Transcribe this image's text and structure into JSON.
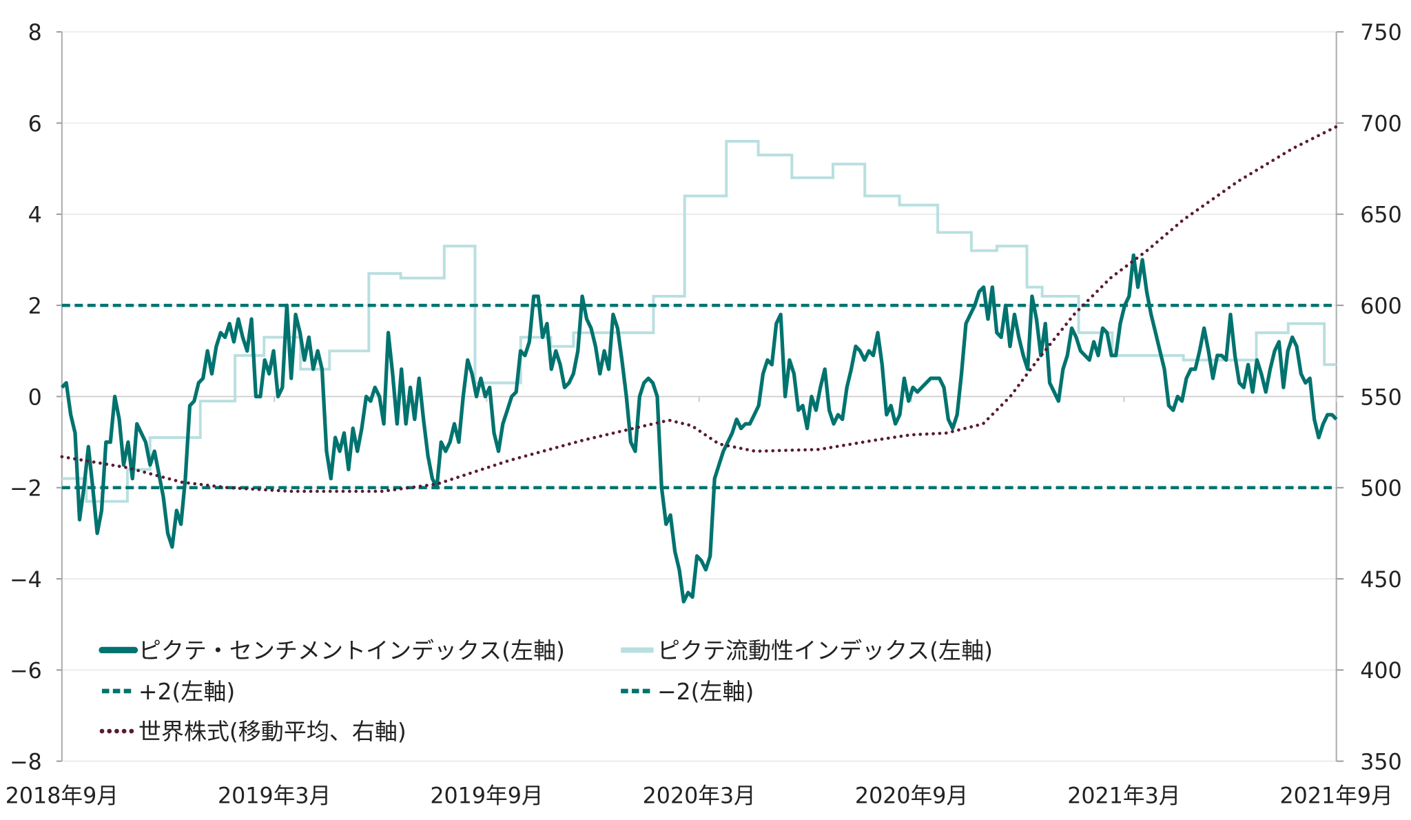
{
  "chart_data": {
    "type": "line",
    "title": "",
    "x_unit": "months since 2018年9月",
    "xlim": [
      0,
      36
    ],
    "x_ticks": [
      {
        "at": 0,
        "label": "2018年9月"
      },
      {
        "at": 6,
        "label": "2019年3月"
      },
      {
        "at": 12,
        "label": "2019年9月"
      },
      {
        "at": 18,
        "label": "2020年3月"
      },
      {
        "at": 24,
        "label": "2020年9月"
      },
      {
        "at": 30,
        "label": "2021年3月"
      },
      {
        "at": 36,
        "label": "2021年9月"
      }
    ],
    "y_left": {
      "lim": [
        -8,
        8
      ],
      "ticks": [
        8,
        6,
        4,
        2,
        0,
        -2,
        -4,
        -6,
        -8
      ],
      "labels": [
        "8",
        "6",
        "4",
        "2",
        "0",
        "−2",
        "−4",
        "−6",
        "−8"
      ]
    },
    "y_right": {
      "lim": [
        350,
        750
      ],
      "ticks": [
        750,
        700,
        650,
        600,
        550,
        500,
        450,
        400,
        350
      ],
      "labels": [
        "750",
        "700",
        "650",
        "600",
        "550",
        "500",
        "450",
        "400",
        "350"
      ]
    },
    "grid": true,
    "legend_placement": "bottom-left",
    "series": [
      {
        "name": "ピクテ・センチメントインデックス(左軸)",
        "axis": "left",
        "style": "solid-thick",
        "color": "#00736f",
        "x_range": [
          0,
          36
        ],
        "values": [
          0.2,
          0.3,
          -0.4,
          -0.8,
          -2.7,
          -2.0,
          -1.1,
          -2.0,
          -3.0,
          -2.5,
          -1.0,
          -1.0,
          0.0,
          -0.5,
          -1.5,
          -1.0,
          -1.8,
          -0.6,
          -0.8,
          -1.0,
          -1.5,
          -1.2,
          -1.7,
          -2.2,
          -3.0,
          -3.3,
          -2.5,
          -2.8,
          -1.8,
          -0.2,
          -0.1,
          0.3,
          0.4,
          1.0,
          0.5,
          1.1,
          1.4,
          1.3,
          1.6,
          1.2,
          1.7,
          1.3,
          1.0,
          1.7,
          0.0,
          0.0,
          0.8,
          0.5,
          1.0,
          0.0,
          0.2,
          2.0,
          0.4,
          1.8,
          1.4,
          0.8,
          1.3,
          0.6,
          1.0,
          0.6,
          -1.2,
          -1.8,
          -0.9,
          -1.2,
          -0.8,
          -1.6,
          -0.7,
          -1.2,
          -0.7,
          0.0,
          -0.1,
          0.2,
          0.0,
          -0.6,
          1.4,
          0.5,
          -0.6,
          0.6,
          -0.6,
          0.2,
          -0.5,
          0.4,
          -0.5,
          -1.3,
          -1.8,
          -2.0,
          -1.0,
          -1.2,
          -1.0,
          -0.6,
          -1.0,
          0.0,
          0.8,
          0.5,
          0.0,
          0.4,
          0.0,
          0.2,
          -0.8,
          -1.2,
          -0.6,
          -0.3,
          0.0,
          0.1,
          1.0,
          0.9,
          1.2,
          2.2,
          2.2,
          1.3,
          1.6,
          0.6,
          1.0,
          0.7,
          0.2,
          0.3,
          0.5,
          1.0,
          2.2,
          1.7,
          1.5,
          1.1,
          0.5,
          1.0,
          0.6,
          1.8,
          1.5,
          0.8,
          0.0,
          -1.0,
          -1.2,
          0.0,
          0.3,
          0.4,
          0.3,
          0.0,
          -2.0,
          -2.8,
          -2.6,
          -3.4,
          -3.8,
          -4.5,
          -4.3,
          -4.4,
          -3.5,
          -3.6,
          -3.8,
          -3.5,
          -1.8,
          -1.5,
          -1.2,
          -1.0,
          -0.8,
          -0.5,
          -0.7,
          -0.6,
          -0.6,
          -0.4,
          -0.2,
          0.5,
          0.8,
          0.7,
          1.6,
          1.8,
          0.0,
          0.8,
          0.5,
          -0.3,
          -0.2,
          -0.7,
          0.0,
          -0.3,
          0.2,
          0.6,
          -0.3,
          -0.6,
          -0.4,
          -0.5,
          0.2,
          0.6,
          1.1,
          1.0,
          0.8,
          1.0,
          0.9,
          1.4,
          0.7,
          -0.4,
          -0.2,
          -0.6,
          -0.4,
          0.4,
          -0.1,
          0.2,
          0.1,
          0.2,
          0.3,
          0.4,
          0.4,
          0.4,
          0.2,
          -0.5,
          -0.7,
          -0.4,
          0.5,
          1.6,
          1.8,
          2.0,
          2.3,
          2.4,
          1.7,
          2.4,
          1.4,
          1.3,
          2.0,
          1.1,
          1.8,
          1.3,
          0.9,
          0.6,
          2.2,
          1.7,
          0.9,
          1.6,
          0.3,
          0.1,
          -0.1,
          0.6,
          0.9,
          1.5,
          1.3,
          1.0,
          0.9,
          0.8,
          1.2,
          0.9,
          1.5,
          1.4,
          0.9,
          0.9,
          1.6,
          2.0,
          2.2,
          3.1,
          2.4,
          3.0,
          2.3,
          1.8,
          1.4,
          1.0,
          0.6,
          -0.2,
          -0.3,
          0.0,
          -0.1,
          0.4,
          0.6,
          0.6,
          1.0,
          1.5,
          1.0,
          0.4,
          0.9,
          0.9,
          0.8,
          1.8,
          0.9,
          0.3,
          0.2,
          0.7,
          0.1,
          0.8,
          0.5,
          0.1,
          0.6,
          1.0,
          1.2,
          0.2,
          1.0,
          1.3,
          1.1,
          0.5,
          0.3,
          0.4,
          -0.5,
          -0.9,
          -0.6,
          -0.4,
          -0.4,
          -0.5
        ]
      },
      {
        "name": "ピクテ流動性インデックス(左軸)",
        "axis": "left",
        "style": "step",
        "color": "#b9dfe0",
        "steps": [
          [
            0,
            -1.8
          ],
          [
            0.69,
            -2.3
          ],
          [
            1.85,
            -1.6
          ],
          [
            2.49,
            -0.9
          ],
          [
            3.91,
            -0.1
          ],
          [
            4.89,
            0.9
          ],
          [
            5.71,
            1.3
          ],
          [
            6.74,
            0.6
          ],
          [
            7.56,
            1.0
          ],
          [
            8.67,
            2.7
          ],
          [
            9.57,
            2.6
          ],
          [
            10.8,
            3.3
          ],
          [
            11.67,
            0.3
          ],
          [
            12.96,
            1.3
          ],
          [
            13.81,
            1.1
          ],
          [
            14.45,
            1.4
          ],
          [
            16.71,
            2.2
          ],
          [
            17.59,
            4.4
          ],
          [
            18.77,
            5.6
          ],
          [
            19.67,
            5.3
          ],
          [
            20.62,
            4.8
          ],
          [
            21.78,
            5.1
          ],
          [
            22.68,
            4.4
          ],
          [
            23.66,
            4.2
          ],
          [
            24.74,
            3.6
          ],
          [
            25.69,
            3.2
          ],
          [
            26.41,
            3.3
          ],
          [
            27.26,
            2.4
          ],
          [
            27.69,
            2.2
          ],
          [
            28.72,
            1.4
          ],
          [
            29.67,
            0.9
          ],
          [
            31.68,
            0.8
          ],
          [
            33.74,
            1.4
          ],
          [
            34.64,
            1.6
          ],
          [
            35.66,
            0.7
          ]
        ],
        "x_end": 36
      },
      {
        "name": "+2(左軸)",
        "axis": "left",
        "style": "dashed",
        "color": "#00736f",
        "constant": 2
      },
      {
        "name": "−2(左軸)",
        "axis": "left",
        "style": "dashed",
        "color": "#00736f",
        "constant": -2
      },
      {
        "name": "世界株式(移動平均、右軸)",
        "axis": "right",
        "style": "dotted",
        "color": "#5a1a33",
        "x": [
          0,
          1.85,
          3.39,
          4.68,
          6.48,
          9.05,
          10.6,
          12.65,
          14.71,
          16.25,
          17.15,
          17.79,
          18.56,
          19.59,
          21.39,
          22.94,
          23.97,
          24.99,
          26.02,
          26.79,
          27.56,
          28.59,
          29.62,
          30.65,
          31.68,
          33.22,
          34.76,
          36
        ],
        "values": [
          517,
          511,
          503,
          500,
          498,
          498,
          502,
          515,
          526,
          533,
          537,
          534,
          524,
          520,
          521,
          526,
          529,
          530,
          535,
          550,
          570,
          595,
          615,
          630,
          647,
          668,
          686,
          698
        ]
      }
    ]
  }
}
